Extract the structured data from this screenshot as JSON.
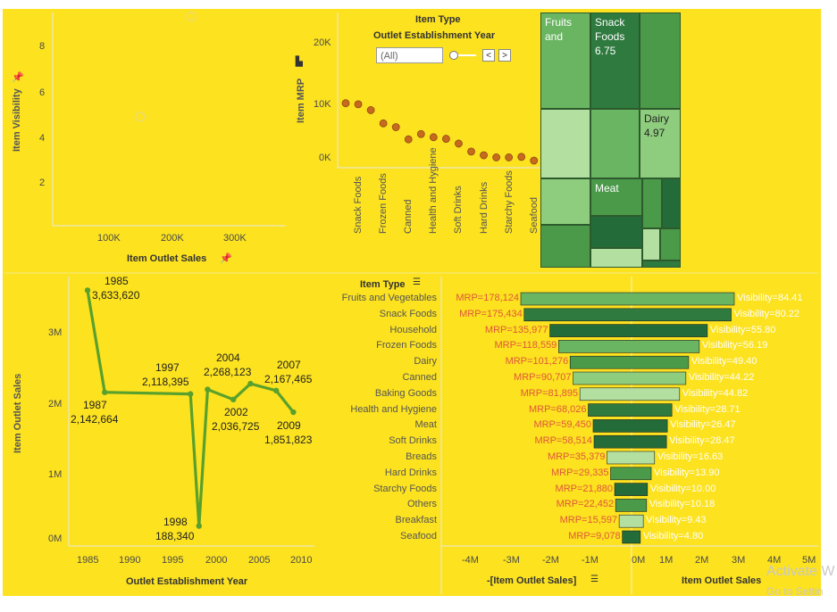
{
  "colors": {
    "background": "#fce21f",
    "line": "#5aa02c",
    "dot": "#c86a1e",
    "mrp_text": "#e0573c",
    "vis_text": "#ffffff",
    "greens": [
      "#2f7a3f",
      "#4a9a4a",
      "#6ab562",
      "#8fcd7e",
      "#b3e0a0",
      "#236b38"
    ]
  },
  "scatter": {
    "ylabel": "Item Visibility",
    "xlabel": "Item Outlet Sales",
    "yticks": [
      "8",
      "6",
      "4",
      "2"
    ],
    "xticks": [
      "100K",
      "200K",
      "300K"
    ],
    "pin_icon": "pin-icon"
  },
  "filter": {
    "title1": "Item Type",
    "title2": "Outlet Establishment Year",
    "value": "(All)",
    "prev": "<",
    "next": ">"
  },
  "dotplot": {
    "ylabel": "Item MRP",
    "yticks": [
      "20K",
      "10K",
      "0K"
    ]
  },
  "treemap": {
    "cells": [
      {
        "label": "Fruits\nand",
        "name": "treemap-fruits"
      },
      {
        "label": "Snack\nFoods\n6.75",
        "name": "treemap-snack"
      },
      {
        "label": "Dairy\n4.97",
        "name": "treemap-dairy"
      },
      {
        "label": "Meat",
        "name": "treemap-meat"
      }
    ]
  },
  "line_chart": {
    "ylabel": "Item Outlet Sales",
    "xlabel": "Outlet Establishment Year",
    "yticks": [
      "3M",
      "2M",
      "1M",
      "0M"
    ],
    "xticks": [
      "1985",
      "1990",
      "1995",
      "2000",
      "2005",
      "2010"
    ],
    "labels": [
      {
        "year": "1985",
        "value": "3,633,620"
      },
      {
        "year": "1987",
        "value": "2,142,664"
      },
      {
        "year": "1997",
        "value": "2,118,395"
      },
      {
        "year": "1998",
        "value": "188,340"
      },
      {
        "year": "2004",
        "value": "2,268,123"
      },
      {
        "year": "2002",
        "value": "2,036,725"
      },
      {
        "year": "2007",
        "value": "2,167,465"
      },
      {
        "year": "2009",
        "value": "1,851,823"
      }
    ]
  },
  "bar_section": {
    "row_header": "Item Type",
    "left_axis_title": "-[Item Outlet Sales]",
    "right_axis_title": "Item Outlet Sales",
    "left_ticks": [
      "-4M",
      "-3M",
      "-2M",
      "-1M",
      "0M"
    ],
    "right_ticks": [
      "1M",
      "2M",
      "3M",
      "4M",
      "5M"
    ],
    "rows": [
      {
        "cat": "Fruits and Vegetables",
        "mrp": "MRP=178,124",
        "vis": "Visibility=84.41"
      },
      {
        "cat": "Snack Foods",
        "mrp": "MRP=175,434",
        "vis": "Visibility=80.22"
      },
      {
        "cat": "Household",
        "mrp": "MRP=135,977",
        "vis": "Visibility=55.80"
      },
      {
        "cat": "Frozen Foods",
        "mrp": "MRP=118,559",
        "vis": "Visibility=56.19"
      },
      {
        "cat": "Dairy",
        "mrp": "MRP=101,276",
        "vis": "Visibility=49.40"
      },
      {
        "cat": "Canned",
        "mrp": "MRP=90,707",
        "vis": "Visibility=44.22"
      },
      {
        "cat": "Baking Goods",
        "mrp": "MRP=81,895",
        "vis": "Visibility=44.82"
      },
      {
        "cat": "Health and Hygiene",
        "mrp": "MRP=68,026",
        "vis": "Visibility=28.71"
      },
      {
        "cat": "Meat",
        "mrp": "MRP=59,450",
        "vis": "Visibility=26.47"
      },
      {
        "cat": "Soft Drinks",
        "mrp": "MRP=58,514",
        "vis": "Visibility=28.47"
      },
      {
        "cat": "Breads",
        "mrp": "MRP=35,379",
        "vis": "Visibility=16.63"
      },
      {
        "cat": "Hard Drinks",
        "mrp": "MRP=29,335",
        "vis": "Visibility=13.90"
      },
      {
        "cat": "Starchy Foods",
        "mrp": "MRP=21,880",
        "vis": "Visibility=10.00"
      },
      {
        "cat": "Others",
        "mrp": "MRP=22,452",
        "vis": "Visibility=10.18"
      },
      {
        "cat": "Breakfast",
        "mrp": "MRP=15,597",
        "vis": "Visibility=9.43"
      },
      {
        "cat": "Seafood",
        "mrp": "MRP=9,078",
        "vis": "Visibility=4.80"
      }
    ]
  },
  "watermark": {
    "line1": "Activate W",
    "line2": "Go to Settin"
  },
  "chart_data": [
    {
      "type": "scatter",
      "xlabel": "Item Outlet Sales",
      "ylabel": "Item Visibility",
      "x": [
        145000,
        230000
      ],
      "y": [
        4.9,
        9.4
      ],
      "xlim": [
        0,
        400000
      ],
      "ylim": [
        0,
        9.5
      ]
    },
    {
      "type": "scatter",
      "ylabel": "Item MRP",
      "categories": [
        "Fruits and Vegetables",
        "Snack Foods",
        "Household",
        "Frozen Foods",
        "Dairy",
        "Canned",
        "Baking Goods",
        "Health and Hygiene",
        "Meat",
        "Soft Drinks",
        "Breads",
        "Hard Drinks",
        "Others",
        "Starchy Foods",
        "Breakfast",
        "Seafood"
      ],
      "visible_tick_labels": [
        "Snack Foods",
        "Frozen Foods",
        "Canned",
        "Health and Hygiene",
        "Soft Drinks",
        "Hard Drinks",
        "Starchy Foods",
        "Seafood"
      ],
      "values": [
        10800,
        10600,
        9500,
        7000,
        6300,
        4000,
        5000,
        4400,
        4100,
        3200,
        1700,
        1000,
        600,
        600,
        700,
        0
      ],
      "ylim": [
        0,
        22000
      ]
    },
    {
      "type": "line",
      "xlabel": "Outlet Establishment Year",
      "ylabel": "Item Outlet Sales",
      "x": [
        1985,
        1987,
        1997,
        1998,
        1999,
        2002,
        2004,
        2007,
        2009
      ],
      "y": [
        3633620,
        2142664,
        2118395,
        188340,
        2183970,
        2036725,
        2268123,
        2167465,
        1851823
      ],
      "xlim": [
        1984,
        2011
      ],
      "ylim": [
        0,
        3800000
      ]
    },
    {
      "type": "bar",
      "orientation": "horizontal",
      "categories": [
        "Fruits and Vegetables",
        "Snack Foods",
        "Household",
        "Frozen Foods",
        "Dairy",
        "Canned",
        "Baking Goods",
        "Health and Hygiene",
        "Meat",
        "Soft Drinks",
        "Breads",
        "Hard Drinks",
        "Starchy Foods",
        "Others",
        "Breakfast",
        "Seafood"
      ],
      "values": [
        2820686,
        2732786,
        2055494,
        1825735,
        1522594,
        1444151,
        1265525,
        1045200,
        917566,
        892898,
        553237,
        457793,
        351401,
        325518,
        232299,
        148868
      ],
      "mrp": [
        178124,
        175434,
        135977,
        118559,
        101276,
        90707,
        81895,
        68026,
        59450,
        58514,
        35379,
        29335,
        21880,
        22452,
        15597,
        9078
      ],
      "visibility": [
        84.41,
        80.22,
        55.8,
        56.19,
        49.4,
        44.22,
        44.82,
        28.71,
        26.47,
        28.47,
        16.63,
        13.9,
        10.0,
        10.18,
        9.43,
        4.8
      ],
      "xlim": [
        -4500000,
        5000000
      ]
    }
  ]
}
